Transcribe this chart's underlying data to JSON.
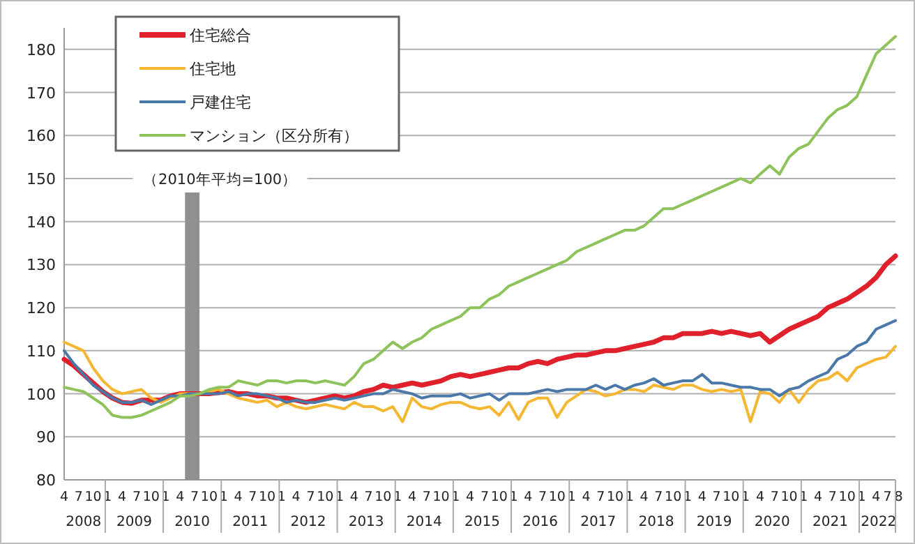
{
  "chart_data": {
    "type": "line",
    "x": [
      "2008-04",
      "2008-06",
      "2008-08",
      "2008-10",
      "2008-12",
      "2009-02",
      "2009-04",
      "2009-06",
      "2009-08",
      "2009-10",
      "2009-12",
      "2010-02",
      "2010-04",
      "2010-06",
      "2010-08",
      "2010-10",
      "2010-12",
      "2011-02",
      "2011-04",
      "2011-06",
      "2011-08",
      "2011-10",
      "2011-12",
      "2012-02",
      "2012-04",
      "2012-06",
      "2012-08",
      "2012-10",
      "2012-12",
      "2013-02",
      "2013-04",
      "2013-06",
      "2013-08",
      "2013-10",
      "2013-12",
      "2014-02",
      "2014-04",
      "2014-06",
      "2014-08",
      "2014-10",
      "2014-12",
      "2015-02",
      "2015-04",
      "2015-06",
      "2015-08",
      "2015-10",
      "2015-12",
      "2016-02",
      "2016-04",
      "2016-06",
      "2016-08",
      "2016-10",
      "2016-12",
      "2017-02",
      "2017-04",
      "2017-06",
      "2017-08",
      "2017-10",
      "2017-12",
      "2018-02",
      "2018-04",
      "2018-06",
      "2018-08",
      "2018-10",
      "2018-12",
      "2019-02",
      "2019-04",
      "2019-06",
      "2019-08",
      "2019-10",
      "2019-12",
      "2020-02",
      "2020-04",
      "2020-06",
      "2020-08",
      "2020-10",
      "2020-12",
      "2021-02",
      "2021-04",
      "2021-06",
      "2021-08",
      "2021-10",
      "2021-12",
      "2022-02",
      "2022-04",
      "2022-06",
      "2022-08"
    ],
    "series": [
      {
        "name": "住宅総合",
        "color": "#e0202a",
        "values": [
          108,
          106.5,
          104.5,
          102.5,
          100.5,
          99,
          98,
          97.8,
          98.5,
          98.5,
          98.5,
          99.5,
          100,
          100,
          100,
          100,
          100.3,
          100.5,
          100,
          100,
          99.5,
          99.5,
          99,
          99,
          98.5,
          98,
          98.5,
          99,
          99.5,
          99,
          99.5,
          100.5,
          101,
          102,
          101.5,
          102,
          102.5,
          102,
          102.5,
          103,
          104,
          104.5,
          104,
          104.5,
          105,
          105.5,
          106,
          106,
          107,
          107.5,
          107,
          108,
          108.5,
          109,
          109,
          109.5,
          110,
          110,
          110.5,
          111,
          111.5,
          112,
          113,
          113,
          114,
          114,
          114,
          114.5,
          114,
          114.5,
          114,
          113.5,
          114,
          112,
          113.5,
          115,
          116,
          117,
          118,
          120,
          121,
          122,
          123.5,
          125,
          127,
          130,
          132
        ]
      },
      {
        "name": "住宅地",
        "color": "#f5b731",
        "values": [
          112,
          111,
          110,
          106,
          103,
          101,
          100,
          100.5,
          101,
          99,
          98,
          99,
          100,
          100,
          100,
          100.5,
          101,
          100,
          99,
          98.5,
          98,
          98.5,
          97,
          98,
          97,
          96.5,
          97,
          97.5,
          97,
          96.5,
          98,
          97,
          97,
          96,
          97,
          93.5,
          99,
          97,
          96.5,
          97.5,
          98,
          98,
          97,
          96.5,
          97,
          95,
          98,
          94,
          98,
          99,
          99,
          94.5,
          98,
          99.5,
          101,
          100.5,
          99.5,
          100,
          101,
          101,
          100.5,
          102,
          101.5,
          101,
          102,
          102,
          101,
          100.5,
          101,
          100.5,
          101,
          93.5,
          100.5,
          100,
          98,
          101,
          98,
          101,
          103,
          103.5,
          105,
          103,
          106,
          107,
          108,
          108.5,
          111
        ]
      },
      {
        "name": "戸建住宅",
        "color": "#4a78a8",
        "values": [
          110,
          107,
          104.5,
          102,
          100.5,
          99,
          98,
          98,
          98.5,
          97.5,
          98.5,
          99.5,
          99.5,
          100,
          100,
          100,
          100,
          100.5,
          99.5,
          100,
          100,
          99.5,
          99,
          98,
          98.5,
          98,
          98,
          98.5,
          99,
          98.5,
          99,
          99.5,
          100,
          100,
          101,
          100.5,
          100,
          99,
          99.5,
          99.5,
          99.5,
          100,
          99,
          99.5,
          100,
          98.5,
          100,
          100,
          100,
          100.5,
          101,
          100.5,
          101,
          101,
          101,
          102,
          101,
          102,
          101,
          102,
          102.5,
          103.5,
          102,
          102.5,
          103,
          103,
          104.5,
          102.5,
          102.5,
          102,
          101.5,
          101.5,
          101,
          101,
          99.5,
          101,
          101.5,
          103,
          104,
          105,
          108,
          109,
          111,
          112,
          115,
          116,
          117
        ]
      },
      {
        "name": "マンション（区分所有）",
        "color": "#8dc35a",
        "values": [
          101.5,
          101,
          100.5,
          99,
          97.5,
          95,
          94.5,
          94.5,
          95,
          96,
          97,
          98,
          99.5,
          99.5,
          100,
          101,
          101.5,
          101.5,
          103,
          102.5,
          102,
          103,
          103,
          102.5,
          103,
          103,
          102.5,
          103,
          102.5,
          102,
          104,
          107,
          108,
          110,
          112,
          110.5,
          112,
          113,
          115,
          116,
          117,
          118,
          120,
          120,
          122,
          123,
          125,
          126,
          127,
          128,
          129,
          130,
          131,
          133,
          134,
          135,
          136,
          137,
          138,
          138,
          139,
          141,
          143,
          143,
          144,
          145,
          146,
          147,
          148,
          149,
          150,
          149,
          151,
          153,
          151,
          155,
          157,
          158,
          161,
          164,
          166,
          167,
          169,
          174,
          179,
          181,
          183
        ]
      }
    ],
    "xlim": [
      "2008-04",
      "2022-08"
    ],
    "xticks": [
      {
        "value": "2008-04",
        "label": "4"
      },
      {
        "value": "2008-07",
        "label": "7"
      },
      {
        "value": "2008-10",
        "label": "10"
      },
      {
        "value": "2009-01",
        "label": "1"
      },
      {
        "value": "2009-04",
        "label": "4"
      },
      {
        "value": "2009-07",
        "label": "7"
      },
      {
        "value": "2009-10",
        "label": "10"
      },
      {
        "value": "2010-01",
        "label": "1"
      },
      {
        "value": "2010-04",
        "label": "4"
      },
      {
        "value": "2010-07",
        "label": "7"
      },
      {
        "value": "2010-10",
        "label": "10"
      },
      {
        "value": "2011-01",
        "label": "1"
      },
      {
        "value": "2011-04",
        "label": "4"
      },
      {
        "value": "2011-07",
        "label": "7"
      },
      {
        "value": "2011-10",
        "label": "10"
      },
      {
        "value": "2012-01",
        "label": "1"
      },
      {
        "value": "2012-04",
        "label": "4"
      },
      {
        "value": "2012-07",
        "label": "7"
      },
      {
        "value": "2012-10",
        "label": "10"
      },
      {
        "value": "2013-01",
        "label": "1"
      },
      {
        "value": "2013-04",
        "label": "4"
      },
      {
        "value": "2013-07",
        "label": "7"
      },
      {
        "value": "2013-10",
        "label": "10"
      },
      {
        "value": "2014-01",
        "label": "1"
      },
      {
        "value": "2014-04",
        "label": "4"
      },
      {
        "value": "2014-07",
        "label": "7"
      },
      {
        "value": "2014-10",
        "label": "10"
      },
      {
        "value": "2015-01",
        "label": "1"
      },
      {
        "value": "2015-04",
        "label": "4"
      },
      {
        "value": "2015-07",
        "label": "7"
      },
      {
        "value": "2015-10",
        "label": "10"
      },
      {
        "value": "2016-01",
        "label": "1"
      },
      {
        "value": "2016-04",
        "label": "4"
      },
      {
        "value": "2016-07",
        "label": "7"
      },
      {
        "value": "2016-10",
        "label": "10"
      },
      {
        "value": "2017-01",
        "label": "1"
      },
      {
        "value": "2017-04",
        "label": "4"
      },
      {
        "value": "2017-07",
        "label": "7"
      },
      {
        "value": "2017-10",
        "label": "10"
      },
      {
        "value": "2018-01",
        "label": "1"
      },
      {
        "value": "2018-04",
        "label": "4"
      },
      {
        "value": "2018-07",
        "label": "7"
      },
      {
        "value": "2018-10",
        "label": "10"
      },
      {
        "value": "2019-01",
        "label": "1"
      },
      {
        "value": "2019-04",
        "label": "4"
      },
      {
        "value": "2019-07",
        "label": "7"
      },
      {
        "value": "2019-10",
        "label": "10"
      },
      {
        "value": "2020-01",
        "label": "1"
      },
      {
        "value": "2020-04",
        "label": "4"
      },
      {
        "value": "2020-07",
        "label": "7"
      },
      {
        "value": "2020-10",
        "label": "10"
      },
      {
        "value": "2021-01",
        "label": "1"
      },
      {
        "value": "2021-04",
        "label": "4"
      },
      {
        "value": "2021-07",
        "label": "7"
      },
      {
        "value": "2021-10",
        "label": "10"
      },
      {
        "value": "2022-01",
        "label": "1"
      },
      {
        "value": "2022-04",
        "label": "4"
      },
      {
        "value": "2022-07",
        "label": "7"
      },
      {
        "value": "2022-08",
        "label": "8"
      }
    ],
    "ylim": [
      80,
      185
    ],
    "yticks": [
      80,
      90,
      100,
      110,
      120,
      130,
      140,
      150,
      160,
      170,
      180
    ],
    "grid": "y",
    "legend": "top left",
    "bands": [
      {
        "axis": "x",
        "from": "2010-05",
        "to": "2010-08",
        "label": "（2010年平均=100）",
        "color": "#909090"
      }
    ],
    "annotations": [
      "2008",
      "2009",
      "2010",
      "2011",
      "2012",
      "2013",
      "2014",
      "2015",
      "2016",
      "2017",
      "2018",
      "2019",
      "2020",
      "2021",
      "2022"
    ]
  }
}
